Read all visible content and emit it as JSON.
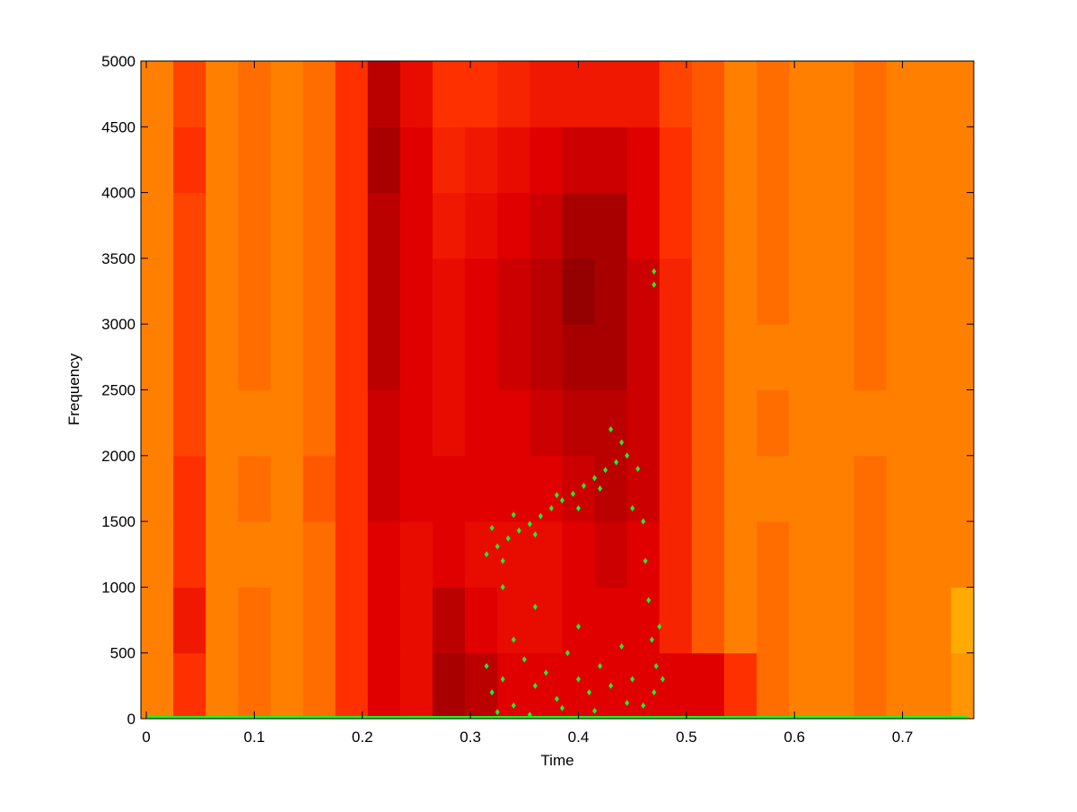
{
  "chart_data": {
    "type": "heatmap",
    "xlabel": "Time",
    "ylabel": "Frequency",
    "xlim": [
      -0.005,
      0.766
    ],
    "ylim": [
      0,
      5000
    ],
    "xticks": [
      0,
      0.1,
      0.2,
      0.3,
      0.4,
      0.5,
      0.6,
      0.7
    ],
    "yticks": [
      0,
      500,
      1000,
      1500,
      2000,
      2500,
      3000,
      3500,
      4000,
      4500,
      5000
    ],
    "xbins": [
      -0.005,
      0.025,
      0.055,
      0.085,
      0.115,
      0.145,
      0.175,
      0.205,
      0.235,
      0.265,
      0.295,
      0.325,
      0.355,
      0.385,
      0.415,
      0.445,
      0.475,
      0.505,
      0.535,
      0.565,
      0.595,
      0.625,
      0.655,
      0.685,
      0.715,
      0.745,
      0.775
    ],
    "ybins": [
      0,
      500,
      1000,
      1500,
      2000,
      2500,
      3000,
      3500,
      4000,
      4500,
      5000
    ],
    "colorscale": [
      {
        "value": 0,
        "color": "#700000"
      },
      {
        "value": 3,
        "color": "#e00000"
      },
      {
        "value": 5,
        "color": "#ff3000"
      },
      {
        "value": 7,
        "color": "#ff8000"
      },
      {
        "value": 10,
        "color": "#ffff00"
      }
    ],
    "z": [
      [
        7,
        5,
        7,
        6.5,
        7,
        6.5,
        5,
        3,
        3.5,
        1.5,
        2,
        3,
        3,
        3,
        3,
        3,
        3,
        3,
        5,
        6.5,
        7,
        7,
        6.5,
        7,
        7,
        7.5
      ],
      [
        7,
        4,
        7,
        6.5,
        7,
        6.5,
        5,
        3,
        3.5,
        2,
        3,
        3.5,
        3.5,
        3,
        3,
        3,
        4.5,
        6,
        7,
        6.5,
        7,
        7,
        6.5,
        7,
        7,
        8
      ],
      [
        7,
        5,
        7,
        7,
        7,
        6.5,
        5,
        3,
        3.5,
        3,
        3.5,
        3.5,
        3.5,
        3,
        2.5,
        3,
        4.5,
        6,
        7,
        6.5,
        7,
        7,
        6.5,
        7,
        7,
        7
      ],
      [
        7,
        5,
        7,
        6.5,
        7,
        6,
        5,
        2.5,
        3,
        3,
        3,
        3,
        3,
        2.5,
        2,
        2.5,
        4.5,
        6,
        7,
        7,
        7,
        7,
        6.5,
        7,
        7,
        7
      ],
      [
        7,
        5.5,
        7,
        7,
        7,
        6.5,
        5,
        2.5,
        3,
        3.5,
        3,
        3,
        2.5,
        2,
        2,
        2.5,
        4.5,
        6,
        7,
        6.5,
        7,
        7,
        7,
        7,
        7,
        7
      ],
      [
        7,
        5.5,
        7,
        6.5,
        7,
        6.5,
        5,
        2,
        3,
        3.5,
        3,
        2.5,
        2,
        1.5,
        1.5,
        2.5,
        4.5,
        6,
        7,
        7,
        7,
        7,
        6.5,
        7,
        7,
        7
      ],
      [
        7,
        5.5,
        7,
        6.5,
        7,
        6.5,
        5,
        2,
        3,
        3.5,
        3,
        2.5,
        2,
        1,
        1.5,
        2.5,
        4.5,
        6,
        7,
        6.5,
        7,
        7,
        6.5,
        7,
        7,
        7
      ],
      [
        7,
        5.5,
        7,
        6.5,
        7,
        6.5,
        5,
        2,
        3,
        4,
        3.5,
        3,
        2.5,
        1.5,
        1.5,
        3,
        5,
        6,
        7,
        6.5,
        7,
        7,
        6.5,
        7,
        7,
        7
      ],
      [
        7,
        5,
        7,
        6.5,
        7,
        6.5,
        5,
        1.5,
        3,
        4.5,
        4,
        3.5,
        3,
        2.5,
        2.5,
        3,
        5,
        6,
        7,
        6.5,
        7,
        7,
        6.5,
        7,
        7,
        7
      ],
      [
        7,
        5.5,
        7,
        6.5,
        7,
        6.5,
        5,
        2,
        3.5,
        5,
        5,
        4.5,
        4,
        4,
        4,
        4,
        5.5,
        6,
        7,
        6.5,
        7,
        7,
        6.5,
        7,
        7,
        7
      ]
    ],
    "series": [
      {
        "type": "scatter",
        "color": "#22ee22",
        "x": [
          0.315,
          0.325,
          0.335,
          0.345,
          0.355,
          0.365,
          0.375,
          0.385,
          0.395,
          0.405,
          0.415,
          0.425,
          0.435,
          0.445,
          0.32,
          0.33,
          0.34,
          0.36,
          0.38,
          0.4,
          0.42,
          0.44,
          0.43,
          0.455,
          0.46,
          0.462,
          0.465,
          0.468,
          0.472,
          0.475,
          0.478,
          0.47,
          0.45,
          0.47,
          0.47,
          0.315,
          0.32,
          0.33,
          0.34,
          0.35,
          0.36,
          0.37,
          0.38,
          0.39,
          0.4,
          0.41,
          0.42,
          0.43,
          0.44,
          0.45,
          0.46,
          0.325,
          0.355,
          0.385,
          0.415,
          0.445,
          0.34,
          0.4,
          0.36,
          0.33
        ],
        "values": [
          1250,
          1310,
          1370,
          1430,
          1480,
          1540,
          1600,
          1660,
          1710,
          1770,
          1830,
          1890,
          1950,
          2000,
          1450,
          1200,
          1550,
          1400,
          1700,
          1600,
          1750,
          2100,
          2200,
          1900,
          1500,
          1200,
          900,
          600,
          400,
          700,
          300,
          200,
          1600,
          3400,
          3300,
          400,
          200,
          300,
          100,
          450,
          250,
          350,
          150,
          500,
          300,
          200,
          400,
          250,
          550,
          300,
          100,
          50,
          30,
          80,
          60,
          120,
          600,
          700,
          850,
          1000
        ]
      },
      {
        "type": "line",
        "color": "#22ee22",
        "x": [
          0,
          0.76
        ],
        "values": [
          0,
          0
        ]
      }
    ]
  }
}
